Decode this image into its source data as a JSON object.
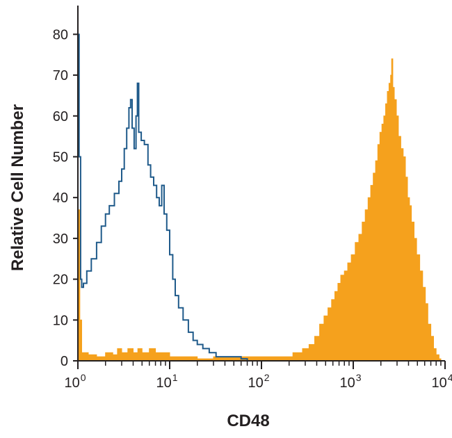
{
  "chart_data": {
    "type": "area",
    "title": "",
    "xlabel": "CD48",
    "ylabel": "Relative Cell Number",
    "xscale": "log",
    "xlim": [
      1,
      10000
    ],
    "ylim": [
      0,
      85
    ],
    "x_ticks": [
      {
        "value": 1,
        "base": "10",
        "exp": "0"
      },
      {
        "value": 10,
        "base": "10",
        "exp": "1"
      },
      {
        "value": 100,
        "base": "10",
        "exp": "2"
      },
      {
        "value": 1000,
        "base": "10",
        "exp": "3"
      },
      {
        "value": 10000,
        "base": "10",
        "exp": "4"
      }
    ],
    "y_ticks": [
      0,
      10,
      20,
      30,
      40,
      50,
      60,
      70,
      80
    ],
    "grid": false,
    "legend": "none",
    "series": [
      {
        "kind": "outline",
        "color": "#1f5a8a",
        "points": [
          [
            1.0,
            80
          ],
          [
            1.03,
            50
          ],
          [
            1.07,
            20
          ],
          [
            1.1,
            18
          ],
          [
            1.15,
            19
          ],
          [
            1.25,
            22
          ],
          [
            1.4,
            25
          ],
          [
            1.6,
            29
          ],
          [
            1.8,
            33
          ],
          [
            2.0,
            36
          ],
          [
            2.2,
            38
          ],
          [
            2.5,
            41
          ],
          [
            2.8,
            44
          ],
          [
            3.0,
            47
          ],
          [
            3.2,
            52
          ],
          [
            3.4,
            57
          ],
          [
            3.6,
            62
          ],
          [
            3.75,
            64
          ],
          [
            3.9,
            57
          ],
          [
            4.1,
            52
          ],
          [
            4.3,
            60
          ],
          [
            4.45,
            68
          ],
          [
            4.6,
            56
          ],
          [
            4.9,
            54
          ],
          [
            5.3,
            53
          ],
          [
            5.8,
            48
          ],
          [
            6.2,
            45
          ],
          [
            6.7,
            43
          ],
          [
            7.2,
            40
          ],
          [
            7.7,
            38
          ],
          [
            8.2,
            43
          ],
          [
            8.7,
            36
          ],
          [
            9.3,
            32
          ],
          [
            10.0,
            26
          ],
          [
            10.8,
            20
          ],
          [
            11.5,
            16
          ],
          [
            12.5,
            13
          ],
          [
            14.0,
            10
          ],
          [
            16.0,
            7
          ],
          [
            18.0,
            5
          ],
          [
            20.0,
            4
          ],
          [
            23.0,
            3
          ],
          [
            27.0,
            2
          ],
          [
            32.0,
            1
          ],
          [
            40.0,
            1
          ],
          [
            50.0,
            1
          ],
          [
            60.0,
            0.5
          ],
          [
            70.0,
            0
          ]
        ]
      },
      {
        "kind": "filled",
        "color": "#f5a11d",
        "points": [
          [
            1.0,
            37
          ],
          [
            1.05,
            10
          ],
          [
            1.1,
            2
          ],
          [
            1.3,
            1.5
          ],
          [
            1.6,
            1
          ],
          [
            2.0,
            2
          ],
          [
            2.4,
            1.5
          ],
          [
            2.7,
            3
          ],
          [
            3.0,
            2
          ],
          [
            3.5,
            3
          ],
          [
            4.0,
            2
          ],
          [
            4.5,
            3
          ],
          [
            5.0,
            2
          ],
          [
            6.0,
            3
          ],
          [
            7.0,
            2
          ],
          [
            8.0,
            2
          ],
          [
            10.0,
            1
          ],
          [
            14.0,
            1
          ],
          [
            20.0,
            0.5
          ],
          [
            30.0,
            1
          ],
          [
            50.0,
            1
          ],
          [
            80.0,
            1
          ],
          [
            120.0,
            1
          ],
          [
            170.0,
            1
          ],
          [
            220.0,
            2
          ],
          [
            280.0,
            3
          ],
          [
            330.0,
            4
          ],
          [
            380.0,
            6
          ],
          [
            430.0,
            9
          ],
          [
            480.0,
            11
          ],
          [
            530.0,
            13
          ],
          [
            580.0,
            15
          ],
          [
            630.0,
            17
          ],
          [
            680.0,
            19
          ],
          [
            730.0,
            21
          ],
          [
            800.0,
            22
          ],
          [
            870.0,
            24
          ],
          [
            950.0,
            26
          ],
          [
            1050.0,
            29
          ],
          [
            1150.0,
            31
          ],
          [
            1250.0,
            34
          ],
          [
            1350.0,
            37
          ],
          [
            1450.0,
            40
          ],
          [
            1550.0,
            43
          ],
          [
            1650.0,
            46
          ],
          [
            1750.0,
            49
          ],
          [
            1850.0,
            53
          ],
          [
            1950.0,
            56
          ],
          [
            2050.0,
            58
          ],
          [
            2150.0,
            60
          ],
          [
            2250.0,
            63
          ],
          [
            2350.0,
            66
          ],
          [
            2450.0,
            68
          ],
          [
            2550.0,
            70
          ],
          [
            2620.0,
            74
          ],
          [
            2700.0,
            67
          ],
          [
            2800.0,
            64
          ],
          [
            2950.0,
            60
          ],
          [
            3100.0,
            55
          ],
          [
            3300.0,
            52
          ],
          [
            3500.0,
            50
          ],
          [
            3700.0,
            45
          ],
          [
            3900.0,
            40
          ],
          [
            4100.0,
            38
          ],
          [
            4300.0,
            34
          ],
          [
            4600.0,
            30
          ],
          [
            4900.0,
            26
          ],
          [
            5300.0,
            22
          ],
          [
            5700.0,
            18
          ],
          [
            6100.0,
            14
          ],
          [
            6500.0,
            9
          ],
          [
            7000.0,
            6
          ],
          [
            7500.0,
            3
          ],
          [
            8000.0,
            1.5
          ],
          [
            8600.0,
            0.5
          ],
          [
            9000.0,
            0
          ]
        ]
      }
    ]
  }
}
